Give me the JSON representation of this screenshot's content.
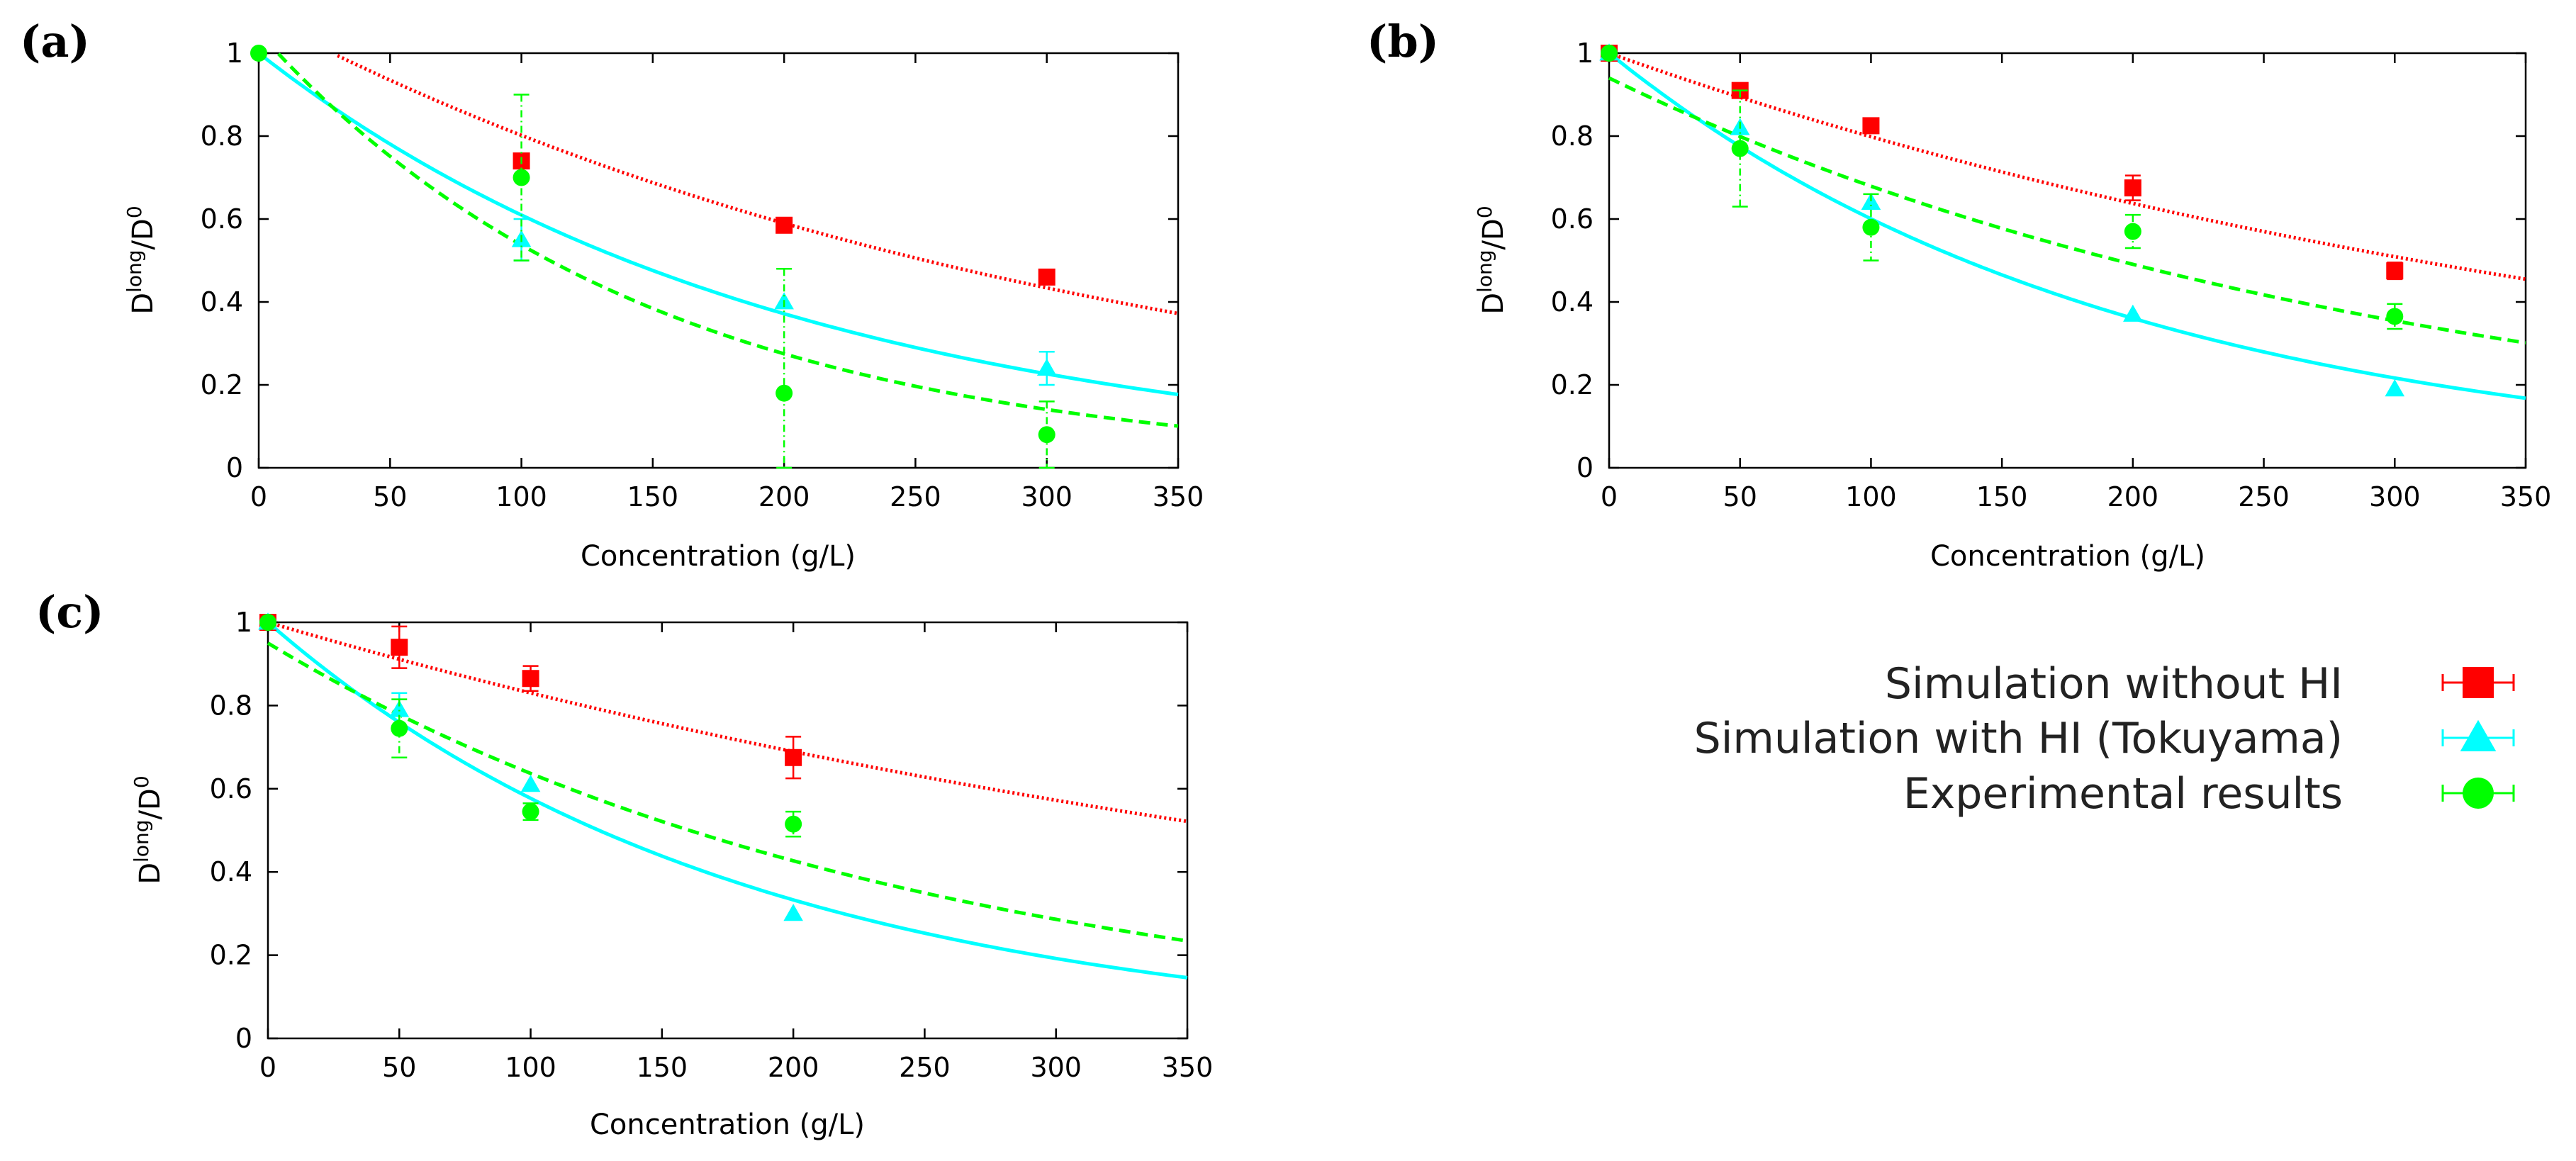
{
  "figure": {
    "legend": [
      {
        "label": "Simulation without HI",
        "color": "#ff0000",
        "marker": "square"
      },
      {
        "label": "Simulation with HI (Tokuyama)",
        "color": "#00ffff",
        "marker": "triangle"
      },
      {
        "label": "Experimental results",
        "color": "#00ff00",
        "marker": "circle"
      }
    ]
  },
  "chart_data": [
    {
      "panel": "(a)",
      "type": "scatter",
      "xlabel": "Concentration (g/L)",
      "ylabel_base": "D",
      "ylabel_sup1": "long",
      "ylabel_mid": "/D",
      "ylabel_sup2": "0",
      "xlim": [
        0,
        350
      ],
      "ylim": [
        0,
        1
      ],
      "xticks": [
        0,
        50,
        100,
        150,
        200,
        250,
        300,
        350
      ],
      "yticks": [
        0,
        0.2,
        0.4,
        0.6,
        0.8,
        1
      ],
      "ytick_labels": [
        "0",
        "0.2",
        "0.4",
        "0.6",
        "0.8",
        "1"
      ],
      "series": [
        {
          "name": "Simulation without HI",
          "color": "#ff0000",
          "marker": "square",
          "x": [
            100,
            200,
            300
          ],
          "y": [
            0.74,
            0.585,
            0.46
          ],
          "err": [
            0,
            0,
            0
          ],
          "fit": {
            "type": "exp",
            "a": 1.09,
            "k": 0.00307,
            "dash": "dotted"
          }
        },
        {
          "name": "Simulation with HI (Tokuyama)",
          "color": "#00ffff",
          "marker": "triangle",
          "x": [
            100,
            200,
            300
          ],
          "y": [
            0.55,
            0.4,
            0.24
          ],
          "err": [
            0.05,
            0,
            0.04
          ],
          "fit": {
            "type": "exp",
            "a": 1.0,
            "k": 0.00495,
            "dash": "solid"
          }
        },
        {
          "name": "Experimental results",
          "color": "#00ff00",
          "marker": "circle",
          "x": [
            0,
            100,
            200,
            300
          ],
          "y": [
            1.0,
            0.7,
            0.18,
            0.08
          ],
          "err": [
            0,
            0.2,
            0.3,
            0.08
          ],
          "fit": {
            "type": "exp",
            "a": 1.05,
            "k": 0.0067,
            "dash": "dashed"
          }
        }
      ]
    },
    {
      "panel": "(b)",
      "type": "scatter",
      "xlabel": "Concentration (g/L)",
      "ylabel_base": "D",
      "ylabel_sup1": "long",
      "ylabel_mid": "/D",
      "ylabel_sup2": "0",
      "xlim": [
        0,
        350
      ],
      "ylim": [
        0,
        1
      ],
      "xticks": [
        0,
        50,
        100,
        150,
        200,
        250,
        300,
        350
      ],
      "yticks": [
        0,
        0.2,
        0.4,
        0.6,
        0.8,
        1
      ],
      "ytick_labels": [
        "0",
        "0.2",
        "0.4",
        "0.6",
        "0.8",
        "1"
      ],
      "series": [
        {
          "name": "Simulation without HI",
          "color": "#ff0000",
          "marker": "square",
          "x": [
            0,
            50,
            100,
            200,
            300
          ],
          "y": [
            1.0,
            0.91,
            0.825,
            0.675,
            0.475
          ],
          "err": [
            0,
            0,
            0,
            0.03,
            0.02
          ],
          "fit": {
            "type": "exp",
            "a": 1.0,
            "k": 0.00225,
            "dash": "dotted"
          }
        },
        {
          "name": "Simulation with HI (Tokuyama)",
          "color": "#00ffff",
          "marker": "triangle",
          "x": [
            0,
            50,
            100,
            200,
            300
          ],
          "y": [
            1.0,
            0.82,
            0.64,
            0.37,
            0.19
          ],
          "err": [
            0,
            0,
            0,
            0,
            0
          ],
          "fit": {
            "type": "exp",
            "a": 1.0,
            "k": 0.0051,
            "dash": "solid"
          }
        },
        {
          "name": "Experimental results",
          "color": "#00ff00",
          "marker": "circle",
          "x": [
            0,
            50,
            100,
            200,
            300
          ],
          "y": [
            1.0,
            0.77,
            0.58,
            0.57,
            0.365
          ],
          "err": [
            0,
            0.14,
            0.08,
            0.04,
            0.03
          ],
          "fit": {
            "type": "exp",
            "a": 0.94,
            "k": 0.00325,
            "dash": "dashed"
          }
        }
      ]
    },
    {
      "panel": "(c)",
      "type": "scatter",
      "xlabel": "Concentration (g/L)",
      "ylabel_base": "D",
      "ylabel_sup1": "long",
      "ylabel_mid": "/D",
      "ylabel_sup2": "0",
      "xlim": [
        0,
        350
      ],
      "ylim": [
        0,
        1
      ],
      "xticks": [
        0,
        50,
        100,
        150,
        200,
        250,
        300,
        350
      ],
      "yticks": [
        0,
        0.2,
        0.4,
        0.6,
        0.8,
        1
      ],
      "ytick_labels": [
        "0",
        "0.2",
        "0.4",
        "0.6",
        "0.8",
        "1"
      ],
      "series": [
        {
          "name": "Simulation without HI",
          "color": "#ff0000",
          "marker": "square",
          "x": [
            0,
            50,
            100,
            200
          ],
          "y": [
            1.0,
            0.94,
            0.865,
            0.675
          ],
          "err": [
            0,
            0.05,
            0.03,
            0.05
          ],
          "fit": {
            "type": "exp",
            "a": 1.0,
            "k": 0.00186,
            "dash": "dotted"
          }
        },
        {
          "name": "Simulation with HI (Tokuyama)",
          "color": "#00ffff",
          "marker": "triangle",
          "x": [
            0,
            50,
            100,
            200
          ],
          "y": [
            1.0,
            0.79,
            0.61,
            0.3
          ],
          "err": [
            0,
            0.04,
            0,
            0
          ],
          "fit": {
            "type": "exp",
            "a": 1.0,
            "k": 0.0055,
            "dash": "solid"
          }
        },
        {
          "name": "Experimental results",
          "color": "#00ff00",
          "marker": "circle",
          "x": [
            0,
            50,
            100,
            200
          ],
          "y": [
            1.0,
            0.745,
            0.545,
            0.515
          ],
          "err": [
            0,
            0.07,
            0.02,
            0.03
          ],
          "fit": {
            "type": "exp",
            "a": 0.95,
            "k": 0.004,
            "dash": "dashed"
          }
        }
      ]
    }
  ]
}
